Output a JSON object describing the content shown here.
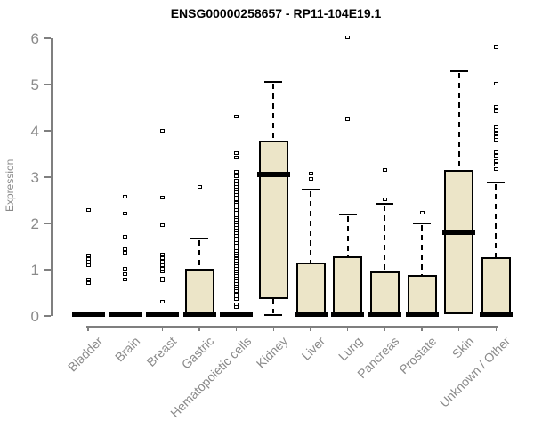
{
  "title": "ENSG00000258657 - RP11-104E19.1",
  "colors": {
    "box_fill": "#ECE5C8",
    "box_border": "#000000",
    "axis": "#7f7f7f",
    "axis_text": "#8a8a8a",
    "title_text": "#000000",
    "outlier_fill": "#ffffff"
  },
  "chart_data": {
    "type": "boxplot",
    "title": "ENSG00000258657 - RP11-104E19.1",
    "xlabel": "",
    "ylabel": "Expression",
    "ylim": [
      0,
      6
    ],
    "yticks": [
      0,
      1,
      2,
      3,
      4,
      5,
      6
    ],
    "grid": false,
    "legend": false,
    "categories": [
      "Bladder",
      "Brain",
      "Breast",
      "Gastric",
      "Hematopoietic cells",
      "Kidney",
      "Liver",
      "Lung",
      "Pancreas",
      "Prostate",
      "Skin",
      "Unknown / Other"
    ],
    "boxes": [
      {
        "category": "Bladder",
        "q1": 0,
        "median": 0.03,
        "q3": 0.05,
        "whisker_low": 0,
        "whisker_high": 0.05,
        "outliers": [
          2.29,
          1.31,
          1.24,
          1.17,
          1.1,
          0.78,
          0.72
        ]
      },
      {
        "category": "Brain",
        "q1": 0,
        "median": 0.03,
        "q3": 0.05,
        "whisker_low": 0,
        "whisker_high": 0.05,
        "outliers": [
          2.57,
          2.21,
          1.71,
          1.44,
          1.36,
          1.01,
          0.9,
          0.78
        ]
      },
      {
        "category": "Breast",
        "q1": 0,
        "median": 0.03,
        "q3": 0.05,
        "whisker_low": 0,
        "whisker_high": 0.05,
        "outliers": [
          4.0,
          2.56,
          1.97,
          1.32,
          1.25,
          1.17,
          1.1,
          1.02,
          0.97,
          0.8,
          0.76,
          0.3
        ]
      },
      {
        "category": "Gastric",
        "q1": 0,
        "median": 0.03,
        "q3": 1.02,
        "whisker_low": 0,
        "whisker_high": 1.68,
        "outliers": [
          2.78
        ]
      },
      {
        "category": "Hematopoietic cells",
        "q1": 0,
        "median": 0.03,
        "q3": 0.05,
        "whisker_low": 0,
        "whisker_high": 0.05,
        "outliers": [
          4.3,
          3.52,
          3.42,
          3.12,
          3.02,
          2.93,
          2.84,
          2.78,
          2.73,
          2.67,
          2.62,
          2.56,
          2.51,
          2.45,
          2.4,
          2.34,
          2.29,
          2.23,
          2.18,
          2.12,
          2.07,
          2.01,
          1.96,
          1.9,
          1.85,
          1.79,
          1.74,
          1.68,
          1.63,
          1.57,
          1.52,
          1.46,
          1.41,
          1.35,
          1.3,
          1.24,
          1.19,
          1.13,
          1.08,
          1.02,
          0.97,
          0.91,
          0.86,
          0.8,
          0.75,
          0.69,
          0.64,
          0.58,
          0.53,
          0.47,
          0.42,
          0.36,
          0.25,
          0.19
        ]
      },
      {
        "category": "Kidney",
        "q1": 0.36,
        "median": 3.05,
        "q3": 3.78,
        "whisker_low": 0.01,
        "whisker_high": 5.06,
        "outliers": []
      },
      {
        "category": "Liver",
        "q1": 0,
        "median": 0.04,
        "q3": 1.15,
        "whisker_low": 0,
        "whisker_high": 2.74,
        "outliers": [
          3.07,
          2.97
        ]
      },
      {
        "category": "Lung",
        "q1": 0,
        "median": 0.04,
        "q3": 1.28,
        "whisker_low": 0,
        "whisker_high": 2.2,
        "outliers": [
          6.02,
          4.25
        ]
      },
      {
        "category": "Pancreas",
        "q1": 0,
        "median": 0.03,
        "q3": 0.97,
        "whisker_low": 0,
        "whisker_high": 2.42,
        "outliers": [
          3.16,
          2.51
        ]
      },
      {
        "category": "Prostate",
        "q1": 0,
        "median": 0.03,
        "q3": 0.88,
        "whisker_low": 0,
        "whisker_high": 2.0,
        "outliers": [
          2.23
        ]
      },
      {
        "category": "Skin",
        "q1": 0.03,
        "median": 1.81,
        "q3": 3.16,
        "whisker_low": 0.03,
        "whisker_high": 5.28,
        "outliers": []
      },
      {
        "category": "Unknown / Other",
        "q1": 0,
        "median": 0.04,
        "q3": 1.26,
        "whisker_low": 0,
        "whisker_high": 2.88,
        "outliers": [
          5.8,
          5.02,
          4.52,
          4.42,
          4.08,
          4.01,
          3.94,
          3.87,
          3.8,
          3.54,
          3.47,
          3.34,
          3.26,
          3.18
        ]
      }
    ]
  }
}
